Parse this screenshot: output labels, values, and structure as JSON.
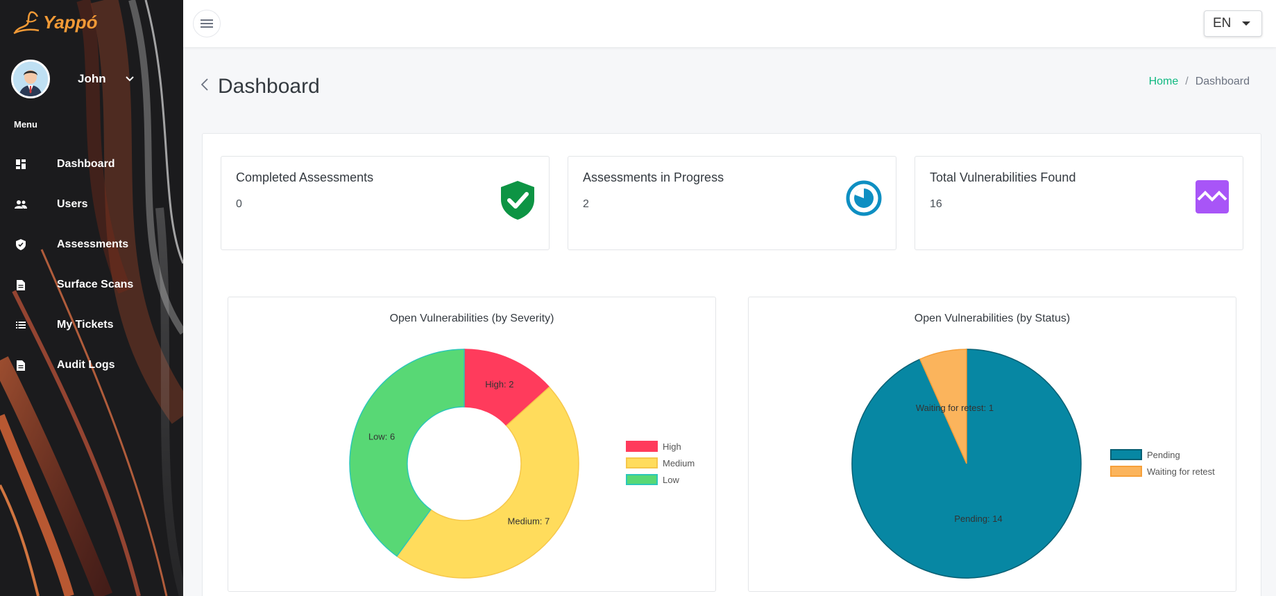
{
  "sidebar": {
    "logo_text": "Yappó",
    "user_name": "John",
    "menu_title": "Menu",
    "items": [
      {
        "label": "Dashboard",
        "icon": "dashboard-icon"
      },
      {
        "label": "Users",
        "icon": "users-icon"
      },
      {
        "label": "Assessments",
        "icon": "shield-icon"
      },
      {
        "label": "Surface Scans",
        "icon": "document-icon"
      },
      {
        "label": "My Tickets",
        "icon": "list-icon"
      },
      {
        "label": "Audit Logs",
        "icon": "document-icon"
      }
    ]
  },
  "topbar": {
    "language": "EN"
  },
  "page": {
    "title": "Dashboard",
    "breadcrumb": {
      "home": "Home",
      "separator": "/",
      "current": "Dashboard"
    }
  },
  "cards": [
    {
      "title": "Completed Assessments",
      "value": "0",
      "icon": "shield-check-icon",
      "color": "#0d9444"
    },
    {
      "title": "Assessments in Progress",
      "value": "2",
      "icon": "progress-clock-icon",
      "color": "#0e8fc2"
    },
    {
      "title": "Total Vulnerabilities Found",
      "value": "16",
      "icon": "waveform-icon",
      "color": "#a855f7"
    }
  ],
  "chart_data": [
    {
      "type": "pie",
      "variant": "doughnut",
      "title": "Open Vulnerabilities (by Severity)",
      "categories": [
        "High",
        "Medium",
        "Low"
      ],
      "values": [
        2,
        7,
        6
      ],
      "colors": [
        "#ff3b5c",
        "#ffdc5c",
        "#58d875"
      ],
      "border_colors": [
        "#ff3b5c",
        "#f6c74a",
        "#2bc7b8"
      ],
      "slice_labels": [
        "High: 2",
        "Medium: 7",
        "Low: 6"
      ],
      "legend": "right"
    },
    {
      "type": "pie",
      "title": "Open Vulnerabilities (by Status)",
      "categories": [
        "Pending",
        "Waiting for retest"
      ],
      "values": [
        14,
        1
      ],
      "colors": [
        "#0787a3",
        "#fbb45c"
      ],
      "border_colors": [
        "#065f73",
        "#f6a03a"
      ],
      "slice_labels": [
        "Pending: 14",
        "Waiting for retest: 1"
      ],
      "legend": "right"
    }
  ]
}
